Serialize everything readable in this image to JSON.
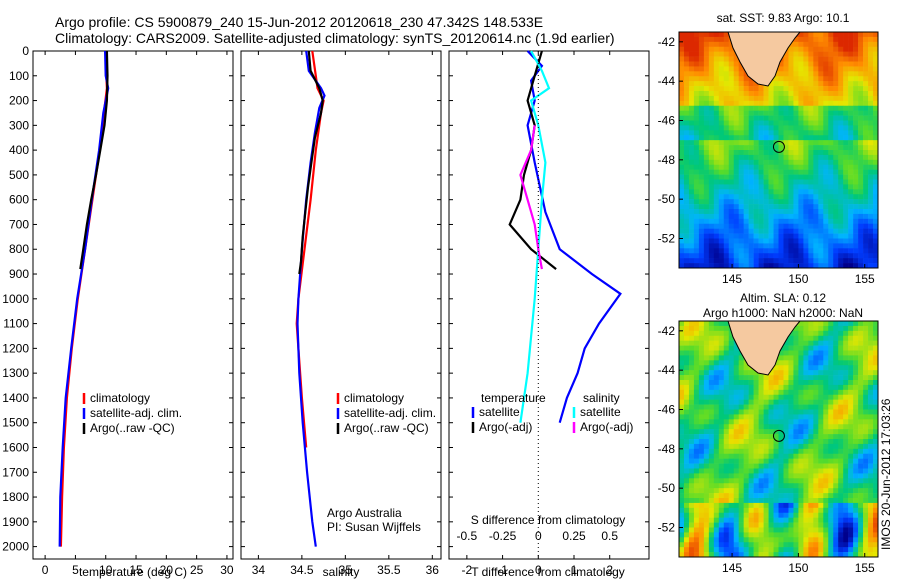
{
  "header": {
    "line1": "Argo profile: CS 5900879_240 15-Jun-2012 20120618_230 47.342S 148.533E",
    "line2": "Climatology: CARS2009. Satellite-adjusted climatology: synTS_20120614.nc (1.9d earlier)"
  },
  "chart_data": [
    {
      "type": "line",
      "id": "temperature",
      "xlabel": "temperature (deg C)",
      "xlim": [
        -2,
        31
      ],
      "xticks": [
        0,
        5,
        10,
        15,
        20,
        25,
        30
      ],
      "ylim": [
        0,
        2050
      ],
      "yticks": [
        0,
        100,
        200,
        300,
        400,
        500,
        600,
        700,
        800,
        900,
        1000,
        1100,
        1200,
        1300,
        1400,
        1500,
        1600,
        1700,
        1800,
        1900,
        2000
      ],
      "legend": [
        "climatology",
        "satellite-adj. clim.",
        "Argo(..raw -QC)"
      ],
      "colors": [
        "#ff0000",
        "#0000ff",
        "#000000"
      ],
      "series": [
        {
          "name": "climatology",
          "color": "#ff0000",
          "points": [
            [
              10.0,
              0
            ],
            [
              10.1,
              100
            ],
            [
              10.2,
              150
            ],
            [
              9.7,
              250
            ],
            [
              9.0,
              400
            ],
            [
              7.8,
              600
            ],
            [
              6.6,
              800
            ],
            [
              5.4,
              1000
            ],
            [
              4.4,
              1200
            ],
            [
              3.6,
              1400
            ],
            [
              3.1,
              1600
            ],
            [
              2.8,
              1800
            ],
            [
              2.6,
              2000
            ]
          ]
        },
        {
          "name": "satellite-adj. clim.",
          "color": "#0000ff",
          "points": [
            [
              9.9,
              0
            ],
            [
              10.0,
              100
            ],
            [
              10.4,
              150
            ],
            [
              9.6,
              250
            ],
            [
              8.9,
              400
            ],
            [
              7.7,
              600
            ],
            [
              6.6,
              800
            ],
            [
              5.3,
              1000
            ],
            [
              4.3,
              1200
            ],
            [
              3.4,
              1400
            ],
            [
              2.9,
              1600
            ],
            [
              2.5,
              1800
            ],
            [
              2.4,
              2000
            ]
          ]
        },
        {
          "name": "Argo(..raw -QC)",
          "color": "#000000",
          "points": [
            [
              10.2,
              0
            ],
            [
              10.3,
              100
            ],
            [
              10.2,
              200
            ],
            [
              9.8,
              300
            ],
            [
              9.1,
              400
            ],
            [
              8.4,
              500
            ],
            [
              7.6,
              600
            ],
            [
              6.9,
              700
            ],
            [
              6.3,
              800
            ],
            [
              5.8,
              880
            ]
          ]
        }
      ]
    },
    {
      "type": "line",
      "id": "salinity",
      "xlabel": "salinity",
      "xlim": [
        33.8,
        36.1
      ],
      "xticks": [
        34,
        34.5,
        35,
        35.5,
        36
      ],
      "ylim": [
        0,
        2050
      ],
      "legend": [
        "climatology",
        "satellite-adj. clim.",
        "Argo(..raw -QC)"
      ],
      "annotation": [
        "Argo Australia",
        "PI: Susan Wijffels"
      ],
      "series": [
        {
          "name": "climatology",
          "color": "#ff0000",
          "points": [
            [
              34.62,
              0
            ],
            [
              34.66,
              100
            ],
            [
              34.68,
              150
            ],
            [
              34.75,
              200
            ],
            [
              34.72,
              250
            ],
            [
              34.66,
              400
            ],
            [
              34.6,
              600
            ],
            [
              34.53,
              800
            ],
            [
              34.46,
              1000
            ],
            [
              34.44,
              1100
            ],
            [
              34.46,
              1200
            ],
            [
              34.5,
              1400
            ],
            [
              34.55,
              1600
            ]
          ]
        },
        {
          "name": "satellite-adj. clim.",
          "color": "#0000ff",
          "points": [
            [
              34.55,
              0
            ],
            [
              34.58,
              80
            ],
            [
              34.72,
              150
            ],
            [
              34.76,
              180
            ],
            [
              34.7,
              230
            ],
            [
              34.65,
              330
            ],
            [
              34.6,
              450
            ],
            [
              34.55,
              600
            ],
            [
              34.5,
              800
            ],
            [
              34.46,
              1000
            ],
            [
              34.45,
              1100
            ],
            [
              34.47,
              1300
            ],
            [
              34.51,
              1500
            ],
            [
              34.56,
              1700
            ],
            [
              34.62,
              1900
            ],
            [
              34.66,
              2000
            ]
          ]
        },
        {
          "name": "Argo(..raw -QC)",
          "color": "#000000",
          "points": [
            [
              34.58,
              0
            ],
            [
              34.6,
              80
            ],
            [
              34.7,
              150
            ],
            [
              34.74,
              200
            ],
            [
              34.72,
              250
            ],
            [
              34.65,
              350
            ],
            [
              34.61,
              450
            ],
            [
              34.57,
              550
            ],
            [
              34.54,
              650
            ],
            [
              34.51,
              750
            ],
            [
              34.49,
              850
            ],
            [
              34.47,
              900
            ]
          ]
        }
      ]
    },
    {
      "type": "line",
      "id": "difference",
      "xlabel": "T difference from climatology",
      "xlabel2": "S difference from climatology",
      "xlim": [
        -2.5,
        3.1
      ],
      "xticks": [
        -2,
        -1,
        0,
        1,
        2
      ],
      "xticks_top_labels": [
        "-0.5",
        "-0.25",
        "0",
        "0.25",
        "0.5"
      ],
      "ylim": [
        0,
        2050
      ],
      "legend": [
        "temperature",
        "satellite",
        "Argo(-adj)",
        "salinity",
        "satellite",
        "Argo(-adj)"
      ],
      "series": [
        {
          "name": "temperature satellite",
          "color": "#0000ff",
          "points": [
            [
              -0.3,
              0
            ],
            [
              0.1,
              60
            ],
            [
              -0.2,
              120
            ],
            [
              -0.1,
              200
            ],
            [
              -0.3,
              300
            ],
            [
              -0.1,
              450
            ],
            [
              0.2,
              650
            ],
            [
              0.6,
              800
            ],
            [
              1.5,
              900
            ],
            [
              2.3,
              980
            ],
            [
              1.7,
              1100
            ],
            [
              1.3,
              1200
            ],
            [
              1.1,
              1300
            ],
            [
              0.8,
              1400
            ],
            [
              0.6,
              1500
            ]
          ]
        },
        {
          "name": "temperature Argo(-adj)",
          "color": "#000000",
          "points": [
            [
              0.1,
              0
            ],
            [
              -0.1,
              100
            ],
            [
              -0.3,
              200
            ],
            [
              -0.1,
              300
            ],
            [
              -0.2,
              400
            ],
            [
              -0.4,
              500
            ],
            [
              -0.5,
              600
            ],
            [
              -0.8,
              700
            ],
            [
              -0.2,
              800
            ],
            [
              0.5,
              880
            ]
          ]
        },
        {
          "name": "salinity satellite",
          "color": "#00ffff",
          "points": [
            [
              -0.2,
              0
            ],
            [
              0.1,
              80
            ],
            [
              0.3,
              150
            ],
            [
              -0.2,
              200
            ],
            [
              0.0,
              300
            ],
            [
              0.2,
              450
            ],
            [
              0.1,
              600
            ],
            [
              0.0,
              800
            ],
            [
              -0.1,
              1000
            ],
            [
              -0.3,
              1300
            ],
            [
              -0.5,
              1500
            ]
          ]
        },
        {
          "name": "salinity Argo(-adj)",
          "color": "#ff00ff",
          "points": [
            [
              -0.1,
              300
            ],
            [
              -0.2,
              400
            ],
            [
              -0.5,
              500
            ],
            [
              -0.3,
              600
            ],
            [
              -0.1,
              700
            ],
            [
              0.0,
              800
            ],
            [
              0.1,
              880
            ]
          ]
        }
      ]
    },
    {
      "type": "heatmap",
      "id": "sst-map",
      "title": "sat. SST: 9.83 Argo: 10.1",
      "xticks": [
        145,
        150,
        155
      ],
      "yticks": [
        -42,
        -44,
        -46,
        -48,
        -50,
        -52
      ],
      "xlim": [
        141,
        156
      ],
      "ylim": [
        -53.5,
        -41.5
      ],
      "argo_position": [
        148.533,
        -47.342
      ]
    },
    {
      "type": "heatmap",
      "id": "sla-map",
      "title": "Altim. SLA: 0.12",
      "subtitle": "Argo h1000: NaN h2000: NaN",
      "xticks": [
        145,
        150,
        155
      ],
      "yticks": [
        -42,
        -44,
        -46,
        -48,
        -50,
        -52
      ],
      "xlim": [
        141,
        156
      ],
      "ylim": [
        -53.5,
        -41.5
      ],
      "argo_position": [
        148.533,
        -47.342
      ]
    }
  ],
  "side_stamp": "IMOS 20-Jun-2012 17:03:26"
}
